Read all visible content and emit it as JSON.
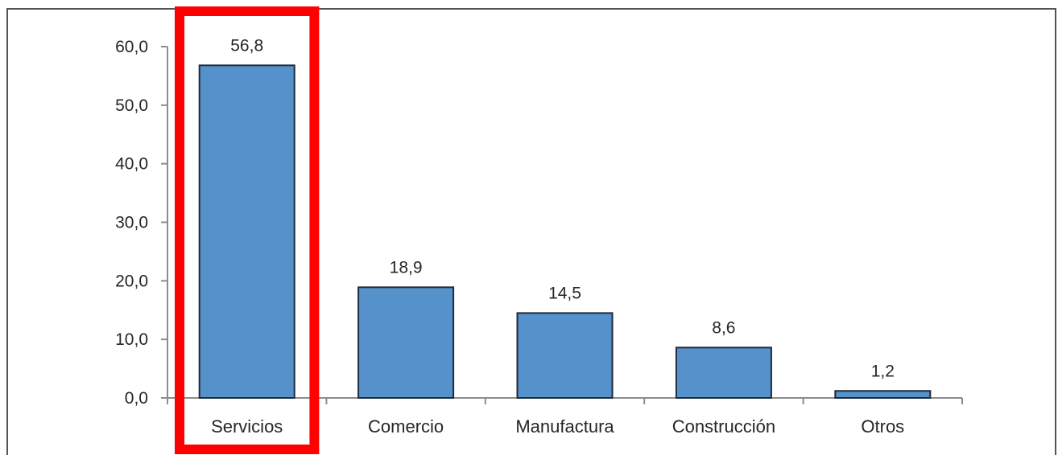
{
  "chart_data": {
    "type": "bar",
    "categories": [
      "Servicios",
      "Comercio",
      "Manufactura",
      "Construcción",
      "Otros"
    ],
    "values": [
      56.8,
      18.9,
      14.5,
      8.6,
      1.2
    ],
    "data_labels": [
      "56,8",
      "18,9",
      "14,5",
      "8,6",
      "1,2"
    ],
    "yticks": [
      0,
      10,
      20,
      30,
      40,
      50,
      60
    ],
    "ytick_labels": [
      "0,0",
      "10,0",
      "20,0",
      "30,0",
      "40,0",
      "50,0",
      "60,0"
    ],
    "ylim": [
      0,
      60
    ],
    "grid": false,
    "legend": false,
    "bar_color": "#5592cc",
    "bar_edge_color": "#1f2a3a",
    "highlight": {
      "category": "Servicios",
      "color": "#ff0000"
    }
  }
}
